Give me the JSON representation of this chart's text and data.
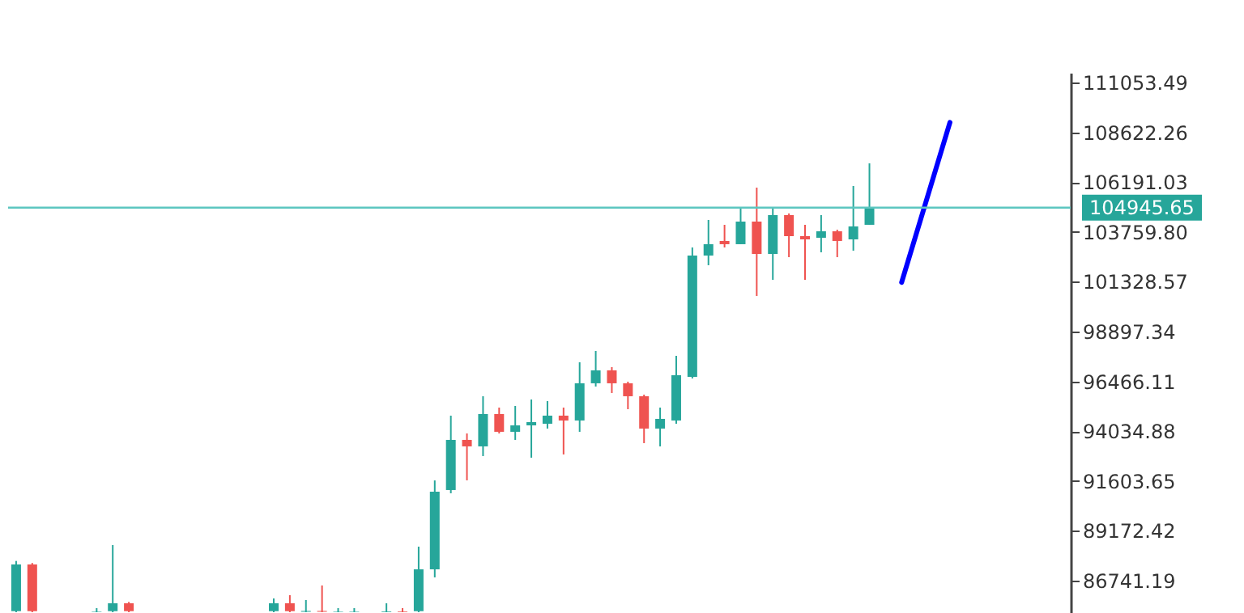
{
  "chart_data": {
    "type": "candlestick",
    "categories": [
      null,
      null,
      null,
      null,
      null,
      null,
      null,
      null,
      null,
      null,
      null,
      null,
      null,
      null,
      null,
      null,
      null,
      null,
      null,
      null,
      null,
      null,
      null,
      null,
      null,
      null,
      null,
      null,
      null,
      null,
      null,
      null,
      null,
      null,
      null,
      null,
      null,
      null,
      null,
      null,
      null,
      null,
      null,
      null,
      null,
      null,
      null,
      null,
      null,
      null,
      null,
      null,
      null,
      null,
      null,
      null,
      null,
      null,
      null,
      null,
      null,
      null,
      null,
      null,
      null,
      null
    ],
    "ohlc": [
      [
        85250,
        87700,
        85200,
        87530
      ],
      [
        87530,
        87600,
        85200,
        85250
      ],
      null,
      null,
      null,
      [
        85210,
        85400,
        85200,
        85230
      ],
      [
        85250,
        88478,
        85200,
        85636
      ],
      [
        85636,
        85700,
        85200,
        85250
      ],
      null,
      null,
      null,
      null,
      null,
      null,
      null,
      null,
      [
        85250,
        85873,
        85200,
        85636
      ],
      [
        85636,
        86031,
        85200,
        85250
      ],
      [
        85220,
        85794,
        85200,
        85260
      ],
      [
        85260,
        86504,
        85200,
        85220
      ],
      [
        85210,
        85400,
        85200,
        85230
      ],
      [
        85210,
        85400,
        85200,
        85230
      ],
      null,
      [
        85210,
        85636,
        85200,
        85240
      ],
      [
        85240,
        85400,
        85200,
        85210
      ],
      [
        85250,
        88399,
        85200,
        87294
      ],
      [
        87294,
        91630,
        86899,
        91082
      ],
      [
        91161,
        94792,
        91003,
        93608
      ],
      [
        93608,
        93924,
        91635,
        93292
      ],
      [
        93292,
        95739,
        92819,
        94871
      ],
      [
        94871,
        95186,
        93924,
        94003
      ],
      [
        94003,
        95265,
        93608,
        94318
      ],
      [
        94318,
        95581,
        92740,
        94476
      ],
      [
        94397,
        95502,
        94161,
        94792
      ],
      [
        94792,
        95186,
        92898,
        94555
      ],
      [
        94555,
        97397,
        94003,
        96371
      ],
      [
        96371,
        97949,
        96213,
        97002
      ],
      [
        97002,
        97160,
        95897,
        96371
      ],
      [
        96371,
        96450,
        95107,
        95739
      ],
      [
        95739,
        95818,
        93450,
        94161
      ],
      [
        94161,
        95186,
        93292,
        94634
      ],
      [
        94555,
        97712,
        94397,
        96765
      ],
      [
        96686,
        103001,
        96608,
        102606
      ],
      [
        102606,
        104343,
        102133,
        103159
      ],
      [
        103317,
        104106,
        103001,
        103159
      ],
      [
        103159,
        104974,
        103159,
        104264
      ],
      [
        104264,
        105921,
        100633,
        102685
      ],
      [
        102685,
        104974,
        101422,
        104580
      ],
      [
        104580,
        104660,
        102527,
        103553
      ],
      [
        103553,
        104106,
        101422,
        103395
      ],
      [
        103474,
        104580,
        102764,
        103790
      ],
      [
        103790,
        103869,
        102527,
        103317
      ],
      [
        103395,
        106000,
        102843,
        104027
      ],
      [
        104106,
        107105,
        104106,
        104946
      ],
      null,
      null,
      null,
      null,
      null,
      null,
      null,
      null,
      null,
      null,
      null,
      null
    ],
    "colors": [
      "#26a69a",
      "#ef5350",
      null,
      null,
      null,
      "#26a69a",
      "#26a69a",
      "#ef5350",
      null,
      null,
      null,
      null,
      null,
      null,
      null,
      null,
      "#26a69a",
      "#ef5350",
      "#26a69a",
      "#ef5350",
      "#26a69a",
      "#26a69a",
      null,
      "#26a69a",
      "#ef5350",
      "#26a69a",
      "#26a69a",
      "#26a69a",
      "#ef5350",
      "#26a69a",
      "#ef5350",
      "#26a69a",
      "#26a69a",
      "#26a69a",
      "#ef5350",
      "#26a69a",
      "#26a69a",
      "#ef5350",
      "#ef5350",
      "#ef5350",
      "#26a69a",
      "#26a69a",
      "#26a69a",
      "#26a69a",
      "#ef5350",
      "#26a69a",
      "#ef5350",
      "#26a69a",
      "#ef5350",
      "#ef5350",
      "#26a69a",
      "#ef5350",
      "#26a69a",
      "#26a69a",
      null,
      null,
      null,
      null,
      null,
      null,
      null,
      null,
      null,
      null,
      null,
      null
    ],
    "series": [
      {
        "type": "line",
        "color": "#0000ff",
        "values": [
          null,
          null,
          null,
          null,
          null,
          null,
          null,
          null,
          null,
          null,
          null,
          null,
          null,
          null,
          null,
          null,
          null,
          null,
          null,
          null,
          null,
          null,
          null,
          null,
          null,
          null,
          null,
          null,
          null,
          null,
          null,
          null,
          null,
          null,
          null,
          null,
          null,
          null,
          null,
          null,
          null,
          null,
          null,
          null,
          null,
          null,
          null,
          null,
          null,
          null,
          null,
          null,
          null,
          null,
          null,
          101300,
          null,
          null,
          109100,
          null,
          null,
          null,
          null,
          null,
          null,
          null
        ]
      }
    ],
    "ylim": [
      85160,
      111525
    ],
    "yticks": [
      {
        "value": 86741.19,
        "label": "86741.19"
      },
      89172.42,
      91603.65,
      94034.88,
      96466.11,
      98897.34,
      101328.57,
      {
        "value": 103759.8,
        "label": "103759.80"
      },
      106191.03,
      108622.26,
      111053.49
    ],
    "ref_lines": [
      {
        "axis": "y",
        "value": 104945.65,
        "label": "104945.65",
        "color": "#5cc6c0"
      }
    ],
    "tick_labels": "y"
  }
}
